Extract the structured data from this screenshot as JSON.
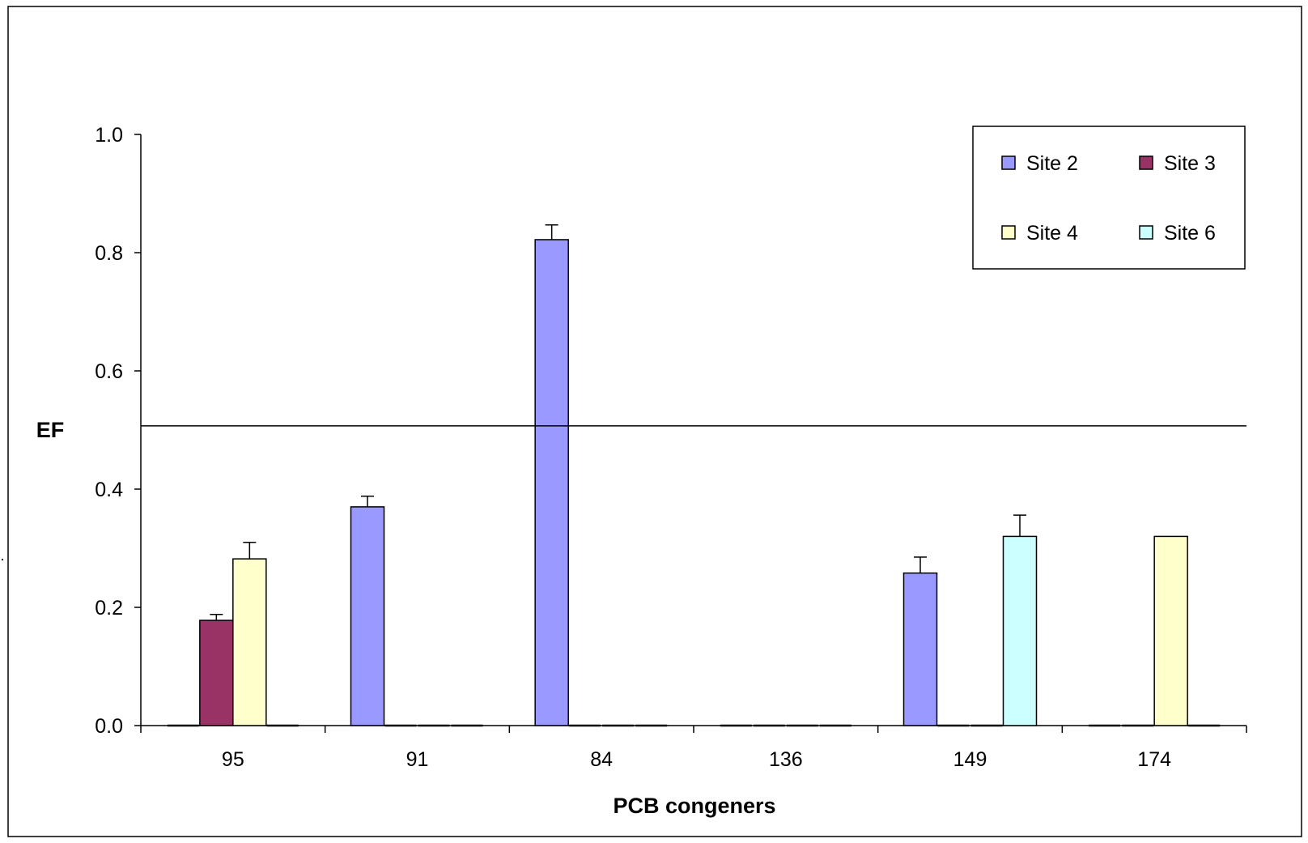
{
  "chart_data": {
    "type": "bar",
    "title": "",
    "xlabel": "PCB congeners",
    "ylabel": "EF",
    "ylim": [
      0,
      1.0
    ],
    "yticks": [
      "0.0",
      "0.2",
      "0.4",
      "0.6",
      "0.8",
      "1.0"
    ],
    "categories": [
      "95",
      "91",
      "84",
      "136",
      "149",
      "174"
    ],
    "reference_line": 0.507,
    "legend_position": "top-right",
    "series": [
      {
        "name": "Site 2",
        "color": "#9999ff",
        "values": [
          0,
          0.37,
          0.822,
          0,
          0.258,
          0
        ],
        "errors": [
          0,
          0.018,
          0.025,
          0,
          0.027,
          0
        ]
      },
      {
        "name": "Site 3",
        "color": "#993366",
        "values": [
          0.178,
          0,
          0,
          0,
          0,
          0
        ],
        "errors": [
          0.01,
          0,
          0,
          0,
          0,
          0
        ]
      },
      {
        "name": "Site 4",
        "color": "#ffffcc",
        "values": [
          0.282,
          0,
          0,
          0,
          0,
          0.32
        ],
        "errors": [
          0.028,
          0,
          0,
          0,
          0.063,
          0
        ]
      },
      {
        "name": "Site 6",
        "color": "#ccffff",
        "values": [
          0,
          0,
          0,
          0,
          0.32,
          0
        ],
        "errors": [
          0,
          0,
          0,
          0,
          0.036,
          0
        ]
      }
    ]
  }
}
